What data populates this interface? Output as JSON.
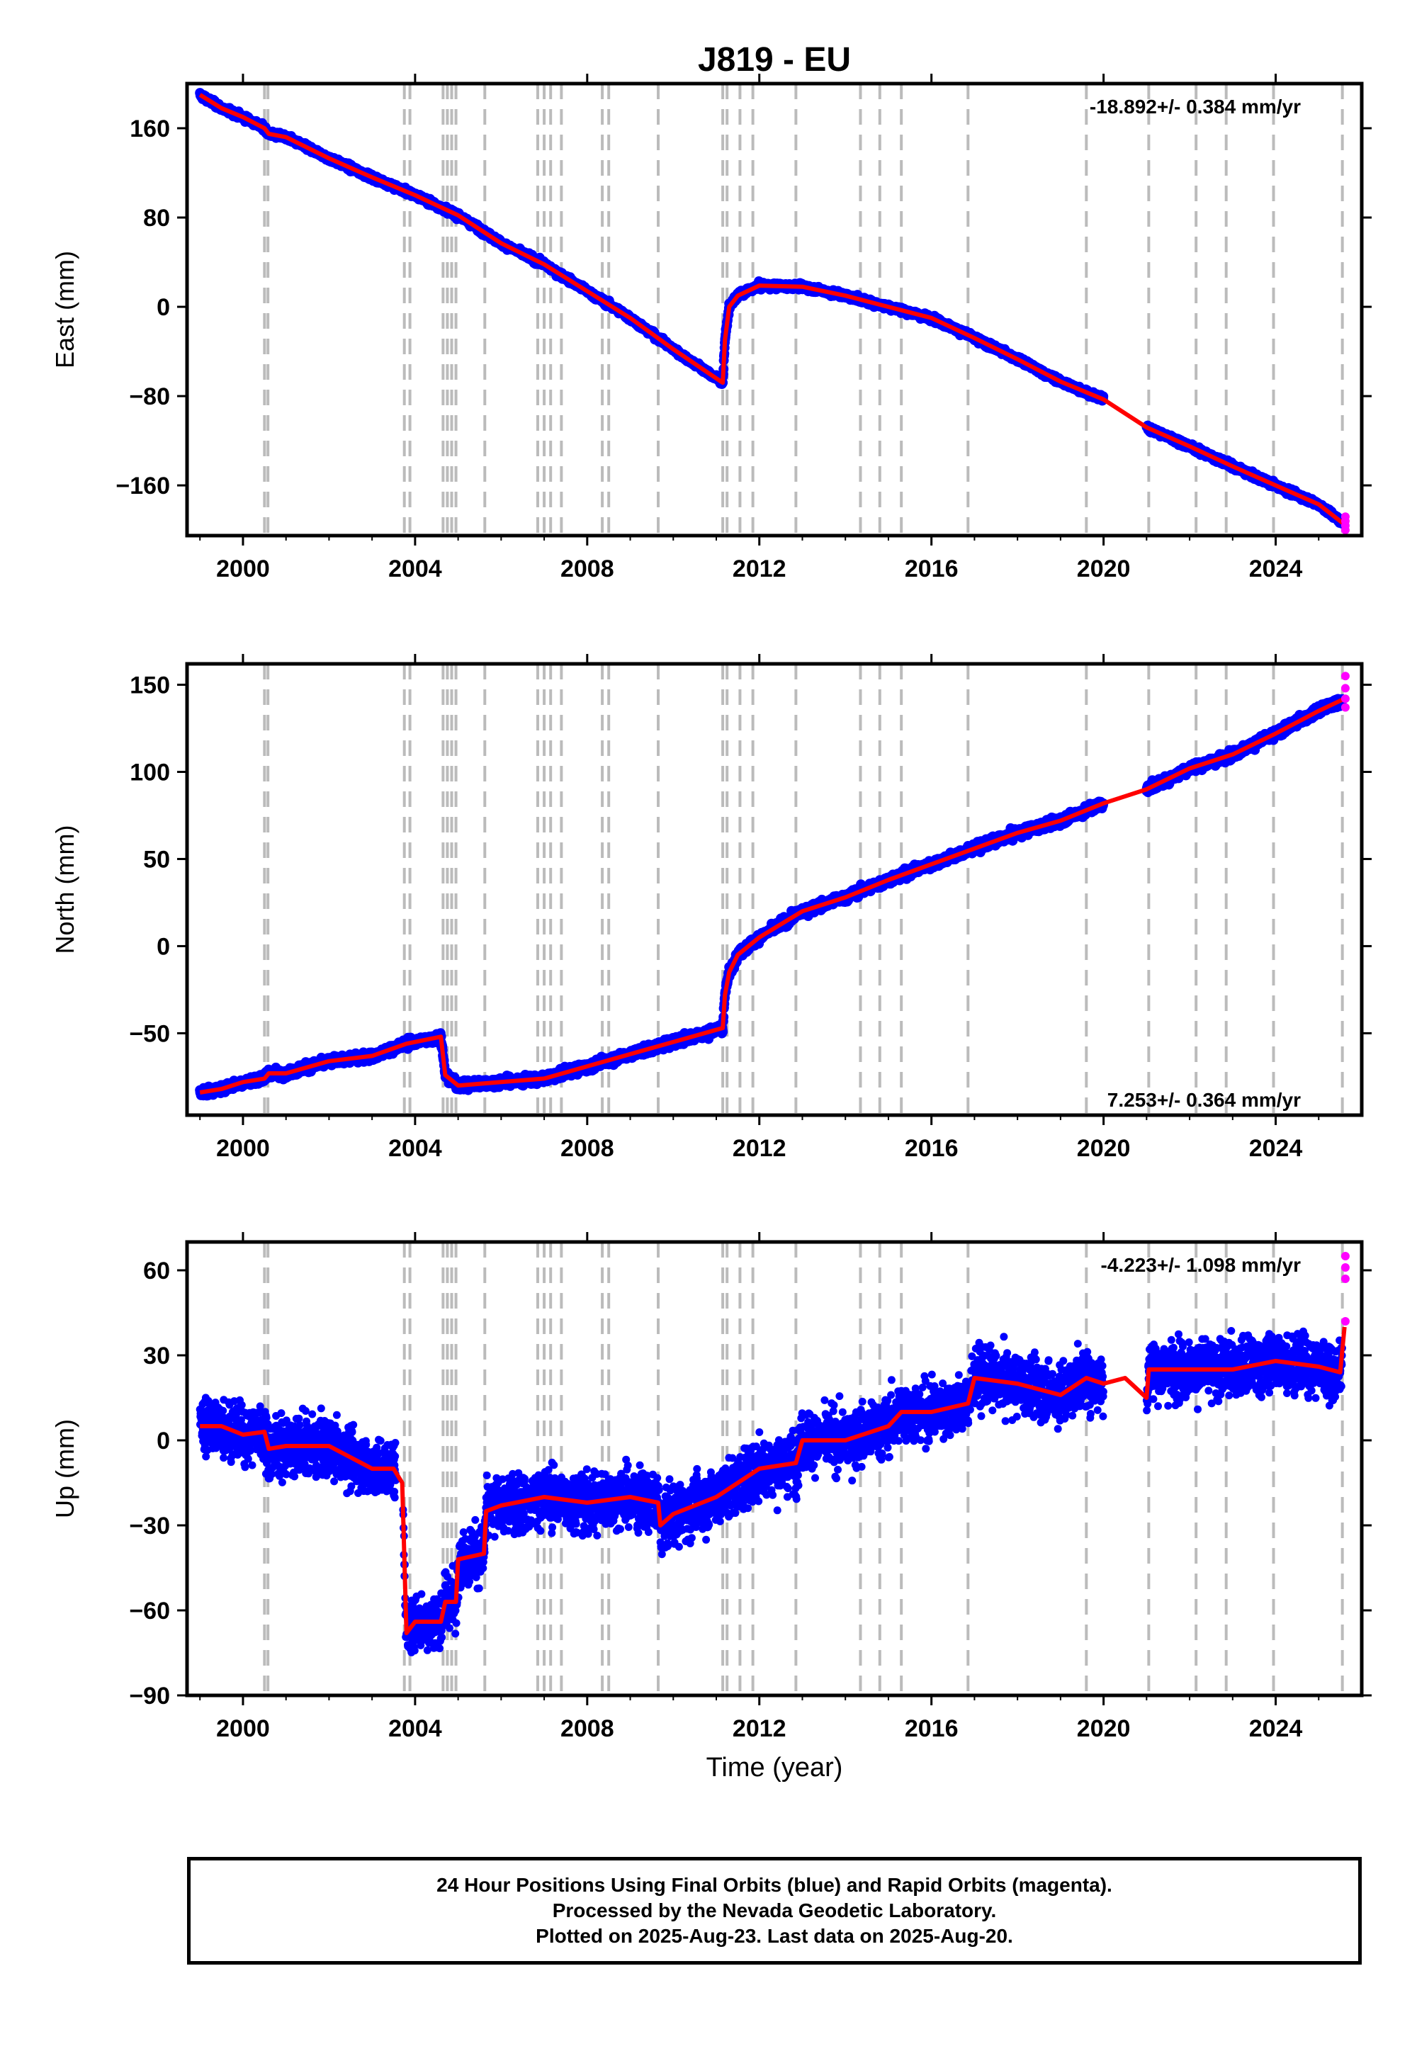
{
  "title": "J819 - EU",
  "x_axis_label": "Time (year)",
  "footer": {
    "line1": "24 Hour Positions Using Final Orbits (blue) and Rapid Orbits (magenta).",
    "line2": "Processed by the Nevada Geodetic Laboratory.",
    "line3": "Plotted on 2025-Aug-23. Last data on 2025-Aug-20."
  },
  "colors": {
    "final_orbits": "#0000ff",
    "rapid_orbits": "#ff00ff",
    "model": "#ff0000",
    "event_lines": "#bbbbbb"
  },
  "chart_data": [
    {
      "type": "scatter",
      "name": "east",
      "ylabel": "East (mm)",
      "rate_text": "-18.892+/- 0.384 mm/yr",
      "rate_position": "top-right",
      "xlim": [
        1998.7,
        2026.0
      ],
      "ylim": [
        -205,
        200
      ],
      "xticks": [
        2000,
        2004,
        2008,
        2012,
        2016,
        2020,
        2024
      ],
      "yticks": [
        -160,
        -80,
        0,
        80,
        160
      ],
      "yticklabels": [
        "−160",
        "−80",
        "0",
        "80",
        "160"
      ],
      "event_lines": [
        2000.5,
        2000.58,
        2003.75,
        2003.88,
        2004.65,
        2004.75,
        2004.85,
        2004.95,
        2005.62,
        2006.85,
        2007.0,
        2007.15,
        2007.4,
        2008.35,
        2008.5,
        2009.65,
        2011.15,
        2011.25,
        2011.55,
        2011.85,
        2012.85,
        2014.35,
        2014.8,
        2015.3,
        2016.85,
        2019.6,
        2021.05,
        2022.15,
        2022.85,
        2023.95,
        2025.55
      ],
      "model_line": {
        "x": [
          1999.0,
          1999.5,
          2000.0,
          2000.5,
          2000.6,
          2001.0,
          2002.0,
          2003.0,
          2004.0,
          2005.0,
          2006.0,
          2007.0,
          2008.0,
          2009.0,
          2010.0,
          2011.15,
          2011.2,
          2011.3,
          2011.5,
          2012.0,
          2013.0,
          2014.0,
          2015.0,
          2016.0,
          2017.0,
          2018.0,
          2019.0,
          2020.0,
          2021.0,
          2022.0,
          2023.0,
          2024.0,
          2025.0,
          2025.6
        ],
        "y": [
          190,
          178,
          170,
          160,
          155,
          152,
          133,
          116,
          100,
          82,
          57,
          38,
          14,
          -10,
          -38,
          -68,
          -30,
          0,
          10,
          19,
          18,
          10,
          0,
          -10,
          -28,
          -47,
          -67,
          -83,
          -108,
          -125,
          -143,
          -160,
          -177,
          -195
        ]
      },
      "gap": [
        2020.0,
        2021.0
      ],
      "final_data_range": [
        1999.0,
        2025.55
      ],
      "rapid_points": {
        "x": [
          2025.62,
          2025.62,
          2025.62,
          2025.62
        ],
        "y": [
          -188,
          -192,
          -196,
          -200
        ]
      }
    },
    {
      "type": "scatter",
      "name": "north",
      "ylabel": "North (mm)",
      "rate_text": "7.253+/- 0.364 mm/yr",
      "rate_position": "bottom-right",
      "xlim": [
        1998.7,
        2026.0
      ],
      "ylim": [
        -97,
        162
      ],
      "xticks": [
        2000,
        2004,
        2008,
        2012,
        2016,
        2020,
        2024
      ],
      "yticks": [
        -50,
        0,
        50,
        100,
        150
      ],
      "yticklabels": [
        "−50",
        "0",
        "50",
        "100",
        "150"
      ],
      "event_lines": [
        2000.5,
        2000.58,
        2003.75,
        2003.88,
        2004.65,
        2004.75,
        2004.85,
        2004.95,
        2005.62,
        2006.85,
        2007.0,
        2007.15,
        2007.4,
        2008.35,
        2008.5,
        2009.65,
        2011.15,
        2011.25,
        2011.55,
        2011.85,
        2012.85,
        2014.35,
        2014.8,
        2015.3,
        2016.85,
        2019.6,
        2021.05,
        2022.15,
        2022.85,
        2023.95,
        2025.55
      ],
      "model_line": {
        "x": [
          1999.0,
          1999.5,
          2000.0,
          2000.5,
          2000.6,
          2001.0,
          2002.0,
          2003.0,
          2003.8,
          2004.6,
          2004.7,
          2005.0,
          2006.0,
          2007.0,
          2008.0,
          2009.0,
          2010.0,
          2011.15,
          2011.2,
          2011.3,
          2011.5,
          2012.0,
          2013.0,
          2014.0,
          2015.0,
          2016.0,
          2017.0,
          2018.0,
          2019.0,
          2020.0,
          2021.0,
          2022.0,
          2023.0,
          2024.0,
          2025.0,
          2025.6
        ],
        "y": [
          -84,
          -82,
          -78,
          -76,
          -73,
          -73,
          -66,
          -63,
          -56,
          -52,
          -74,
          -80,
          -78,
          -76,
          -69,
          -62,
          -55,
          -47,
          -28,
          -15,
          -5,
          5,
          20,
          28,
          38,
          47,
          56,
          65,
          72,
          82,
          90,
          102,
          110,
          122,
          135,
          142
        ]
      },
      "gap": [
        2020.0,
        2021.0
      ],
      "final_data_range": [
        1999.0,
        2025.55
      ],
      "rapid_points": {
        "x": [
          2025.62,
          2025.62,
          2025.62,
          2025.62
        ],
        "y": [
          155,
          148,
          142,
          137
        ]
      }
    },
    {
      "type": "scatter",
      "name": "up",
      "ylabel": "Up (mm)",
      "rate_text": "-4.223+/- 1.098 mm/yr",
      "rate_position": "top-right",
      "xlim": [
        1998.7,
        2026.0
      ],
      "ylim": [
        -90,
        70
      ],
      "xticks": [
        2000,
        2004,
        2008,
        2012,
        2016,
        2020,
        2024
      ],
      "yticks": [
        -90,
        -60,
        -30,
        0,
        30,
        60
      ],
      "yticklabels": [
        "−90",
        "−60",
        "−30",
        "0",
        "30",
        "60"
      ],
      "event_lines": [
        2000.5,
        2000.58,
        2003.75,
        2003.88,
        2004.65,
        2004.75,
        2004.85,
        2004.95,
        2005.62,
        2006.85,
        2007.0,
        2007.15,
        2007.4,
        2008.35,
        2008.5,
        2009.65,
        2011.15,
        2011.25,
        2011.55,
        2011.85,
        2012.85,
        2014.35,
        2014.8,
        2015.3,
        2016.85,
        2019.6,
        2021.05,
        2022.15,
        2022.85,
        2023.95,
        2025.55
      ],
      "model_line": {
        "x": [
          1999.0,
          1999.5,
          2000.0,
          2000.5,
          2000.6,
          2001.0,
          2002.0,
          2002.5,
          2003.0,
          2003.5,
          2003.7,
          2003.8,
          2004.0,
          2004.6,
          2004.7,
          2004.95,
          2005.0,
          2005.6,
          2005.65,
          2006.0,
          2007.0,
          2008.0,
          2009.0,
          2009.65,
          2009.7,
          2010.0,
          2011.0,
          2011.5,
          2012.0,
          2012.85,
          2013.0,
          2014.0,
          2015.0,
          2015.3,
          2016.0,
          2016.85,
          2017.0,
          2018.0,
          2019.0,
          2019.6,
          2020.0,
          2020.5,
          2021.0,
          2021.05,
          2022.0,
          2023.0,
          2024.0,
          2025.0,
          2025.5,
          2025.6
        ],
        "y": [
          5,
          5,
          2,
          3,
          -3,
          -2,
          -2,
          -6,
          -10,
          -10,
          -15,
          -68,
          -64,
          -64,
          -57,
          -57,
          -42,
          -40,
          -25,
          -23,
          -20,
          -22,
          -20,
          -22,
          -30,
          -26,
          -20,
          -15,
          -10,
          -8,
          0,
          0,
          5,
          10,
          10,
          13,
          22,
          20,
          16,
          22,
          20,
          22,
          15,
          25,
          25,
          25,
          28,
          26,
          24,
          40
        ]
      },
      "gap": [
        2020.0,
        2021.0
      ],
      "final_data_range": [
        1999.0,
        2025.55
      ],
      "rapid_points": {
        "x": [
          2025.62,
          2025.62,
          2025.62,
          2025.62
        ],
        "y": [
          65,
          61,
          57,
          42
        ]
      }
    }
  ]
}
